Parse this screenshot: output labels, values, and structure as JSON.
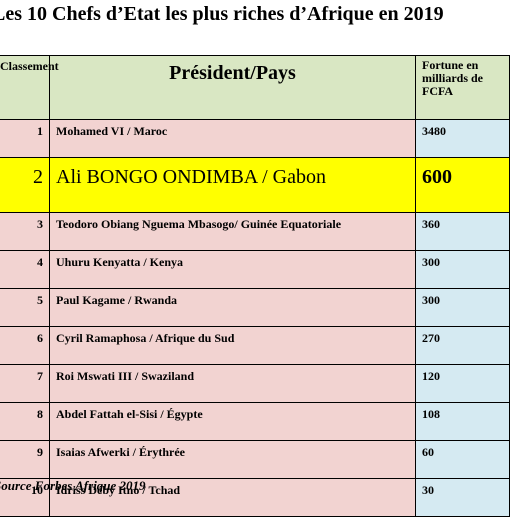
{
  "title": "Les 10 Chefs d’Etat les plus riches d’Afrique en 2019",
  "table": {
    "headers": {
      "rank": "Classement",
      "president": "Président/Pays",
      "fortune": "Fortune en milliards de FCFA"
    },
    "rows": [
      {
        "rank": "1",
        "president": "Mohamed VI / Maroc",
        "fortune": "3480"
      },
      {
        "rank": "2",
        "president": "Ali BONGO ONDIMBA /  Gabon",
        "fortune": "600",
        "highlight": true
      },
      {
        "rank": "3",
        "president": "Teodoro Obiang Nguema Mbasogo/ Guinée Equatoriale",
        "fortune": "360"
      },
      {
        "rank": "4",
        "president": "Uhuru Kenyatta / Kenya",
        "fortune": "300"
      },
      {
        "rank": "5",
        "president": "Paul Kagame / Rwanda",
        "fortune": "300"
      },
      {
        "rank": "6",
        "president": "Cyril Ramaphosa / Afrique du Sud",
        "fortune": "270"
      },
      {
        "rank": "7",
        "president": "Roi Mswati III / Swaziland",
        "fortune": "120"
      },
      {
        "rank": "8",
        "president": "Abdel Fattah el-Sisi / Égypte",
        "fortune": "108"
      },
      {
        "rank": "9",
        "president": "Isaias Afwerki / Érythrée",
        "fortune": "60"
      },
      {
        "rank": "10",
        "president": "Idriss Déby Itno / Tchad",
        "fortune": "30"
      }
    ]
  },
  "source": "Source Forbes Afrique 2019",
  "colors": {
    "header_bg": "#d9e7c3",
    "row_bg": "#f2d3d1",
    "fortune_bg": "#d5eaf2",
    "highlight_bg": "#ffff00"
  }
}
